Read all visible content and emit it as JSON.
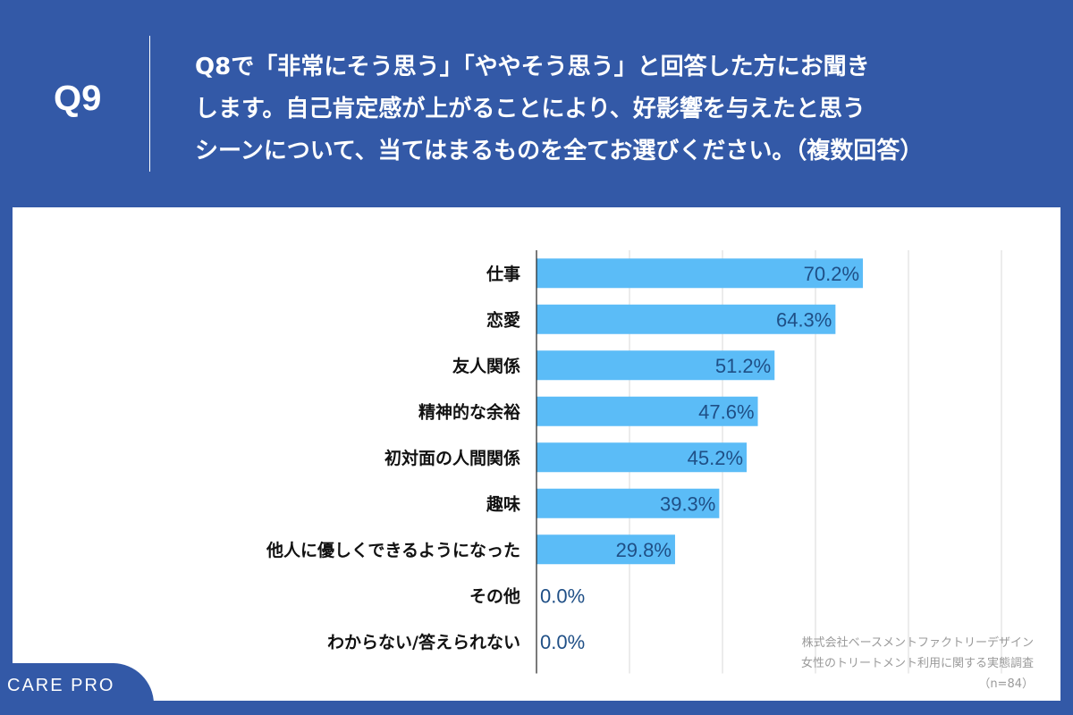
{
  "header": {
    "q_label": "Q9",
    "question": "Q8で「非常にそう思う」「ややそう思う」と回答した方にお聞き\nします。自己肯定感が上がることにより、好影響を与えたと思う\nシーンについて、当てはまるものを全てお選びください。（複数回答）"
  },
  "source": {
    "line1": "株式会社ベースメントファクトリーデザイン",
    "line2": "女性のトリートメント利用に関する実態調査",
    "line3": "（n=84）"
  },
  "logo": {
    "text": "CARE PRO"
  },
  "colors": {
    "background": "#3359a7",
    "bar": "#5bbcf7",
    "value_text": "#1f4f86",
    "label_text": "#111111",
    "grid": "#d8d8d8",
    "axis": "#222222"
  },
  "chart_data": {
    "type": "bar",
    "orientation": "horizontal",
    "categories": [
      "仕事",
      "恋愛",
      "友人関係",
      "精神的な余裕",
      "初対面の人間関係",
      "趣味",
      "他人に優しくできるようになった",
      "その他",
      "わからない/答えられない"
    ],
    "values": [
      70.2,
      64.3,
      51.2,
      47.6,
      45.2,
      39.3,
      29.8,
      0.0,
      0.0
    ],
    "value_labels": [
      "70.2%",
      "64.3%",
      "51.2%",
      "47.6%",
      "45.2%",
      "39.3%",
      "29.8%",
      "0.0%",
      "0.0%"
    ],
    "xlim": [
      0,
      100
    ],
    "grid": true,
    "title": "",
    "xlabel": "",
    "ylabel": ""
  }
}
